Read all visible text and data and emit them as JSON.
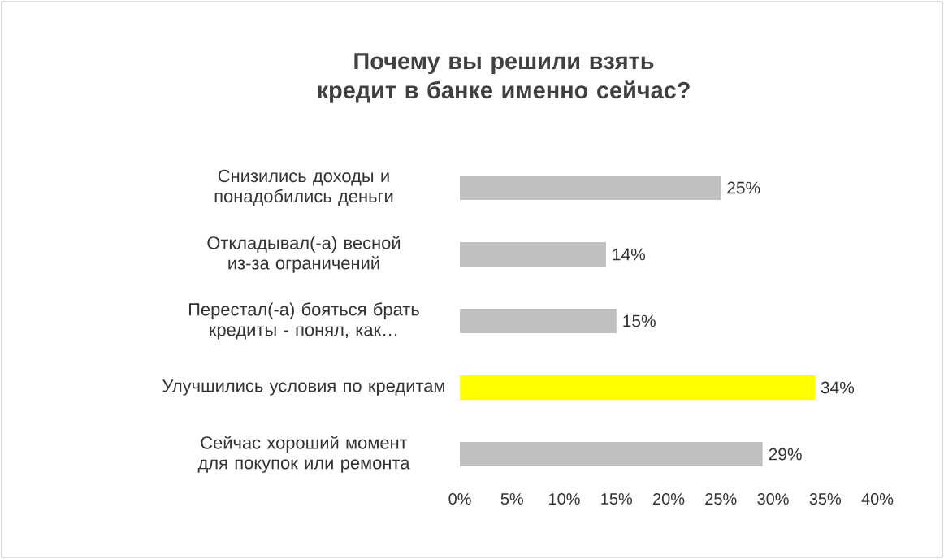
{
  "chart_data": {
    "type": "bar",
    "orientation": "horizontal",
    "title": "Почему вы решили взять кредит в банке именно сейчас?",
    "categories": [
      "Снизились доходы и понадобились деньги",
      "Откладывал(-а) весной из-за ограничений",
      "Перестал(-а) бояться брать кредиты - понял, как…",
      "Улучшились условия по кредитам",
      "Сейчас хороший момент для покупок или ремонта"
    ],
    "values": [
      25,
      14,
      15,
      34,
      29
    ],
    "colors": [
      "#bfbfbf",
      "#bfbfbf",
      "#bfbfbf",
      "#ffff00",
      "#bfbfbf"
    ],
    "value_labels": [
      "25%",
      "14%",
      "15%",
      "34%",
      "29%"
    ],
    "xlim": [
      0,
      40
    ],
    "xticks": [
      {
        "value": 0,
        "label": "0%"
      },
      {
        "value": 5,
        "label": "5%"
      },
      {
        "value": 10,
        "label": "10%"
      },
      {
        "value": 15,
        "label": "15%"
      },
      {
        "value": 20,
        "label": "20%"
      },
      {
        "value": 25,
        "label": "25%"
      },
      {
        "value": 30,
        "label": "30%"
      },
      {
        "value": 35,
        "label": "35%"
      },
      {
        "value": 40,
        "label": "40%"
      }
    ],
    "grid": false
  }
}
